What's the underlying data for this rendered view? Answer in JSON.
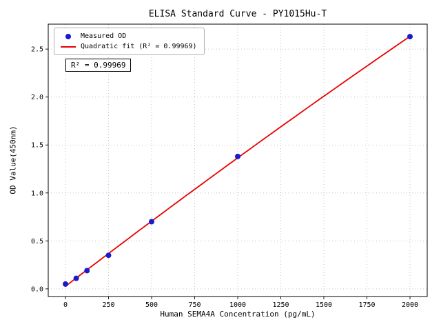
{
  "chart_data": {
    "type": "scatter",
    "title": "ELISA Standard Curve - PY1015Hu-T",
    "xlabel": "Human SEMA4A Concentration (pg/mL)",
    "ylabel": "OD Value(450nm)",
    "xlim": [
      -100,
      2100
    ],
    "ylim": [
      -0.08,
      2.76
    ],
    "xticks": [
      0,
      250,
      500,
      750,
      1000,
      1250,
      1500,
      1750,
      2000
    ],
    "yticks": [
      0.0,
      0.5,
      1.0,
      1.5,
      2.0,
      2.5
    ],
    "grid": true,
    "legend_position": "upper-left",
    "legend": [
      {
        "label": "Measured OD",
        "marker": "dot",
        "color": "#1a1acd"
      },
      {
        "label": "Quadratic fit (R² = 0.99969)",
        "marker": "line",
        "color": "#e80000"
      }
    ],
    "annotation": "R² = 0.99969",
    "series": [
      {
        "name": "Measured OD",
        "type": "scatter",
        "color": "#1a1acd",
        "points": [
          [
            0,
            0.05
          ],
          [
            62.5,
            0.11
          ],
          [
            125,
            0.19
          ],
          [
            250,
            0.35
          ],
          [
            500,
            0.7
          ],
          [
            1000,
            1.38
          ],
          [
            2000,
            2.63
          ]
        ]
      },
      {
        "name": "Quadratic fit",
        "type": "line",
        "color": "#e80000"
      }
    ]
  }
}
